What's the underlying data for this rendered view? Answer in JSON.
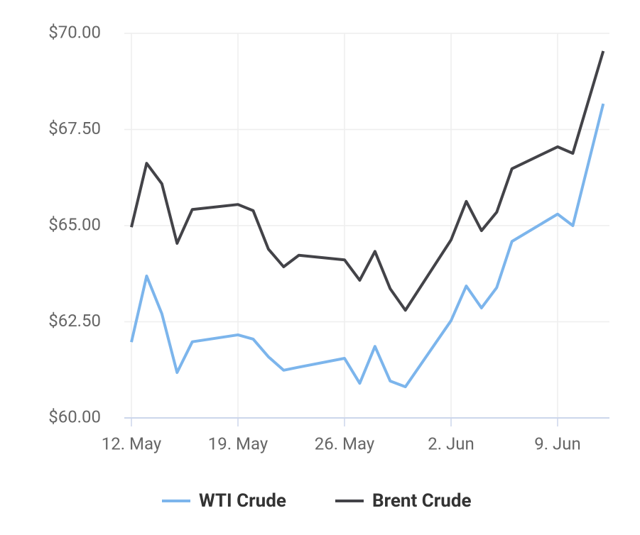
{
  "chart_data": {
    "type": "line",
    "x": [
      "12. May",
      "13. May",
      "14. May",
      "15. May",
      "16. May",
      "19. May",
      "20. May",
      "21. May",
      "22. May",
      "23. May",
      "26. May",
      "27. May",
      "28. May",
      "29. May",
      "30. May",
      "2. Jun",
      "3. Jun",
      "4. Jun",
      "5. Jun",
      "6. Jun",
      "9. Jun",
      "10. Jun",
      "12. Jun"
    ],
    "series": [
      {
        "name": "WTI Crude",
        "color": "#7cb5ec",
        "values": [
          61.97,
          63.69,
          62.71,
          61.18,
          61.98,
          62.16,
          62.05,
          61.59,
          61.24,
          61.32,
          61.55,
          60.9,
          61.86,
          60.96,
          60.81,
          62.53,
          63.43,
          62.86,
          63.39,
          64.59,
          65.3,
          65.0,
          68.17
        ]
      },
      {
        "name": "Brent Crude",
        "color": "#434348",
        "values": [
          64.96,
          66.62,
          66.09,
          64.54,
          65.42,
          65.55,
          65.39,
          64.39,
          63.93,
          64.23,
          64.11,
          63.58,
          64.33,
          63.36,
          62.8,
          64.63,
          65.63,
          64.87,
          65.35,
          66.48,
          67.05,
          66.88,
          69.54
        ]
      }
    ],
    "ylim": [
      60,
      70
    ],
    "yticks": [
      {
        "value": 60,
        "label": "$60.00"
      },
      {
        "value": 62.5,
        "label": "$62.50"
      },
      {
        "value": 65,
        "label": "$65.00"
      },
      {
        "value": 67.5,
        "label": "$67.50"
      },
      {
        "value": 70,
        "label": "$70.00"
      }
    ],
    "xticks": [
      "12. May",
      "19. May",
      "26. May",
      "2. Jun",
      "9. Jun"
    ],
    "grid": true
  }
}
